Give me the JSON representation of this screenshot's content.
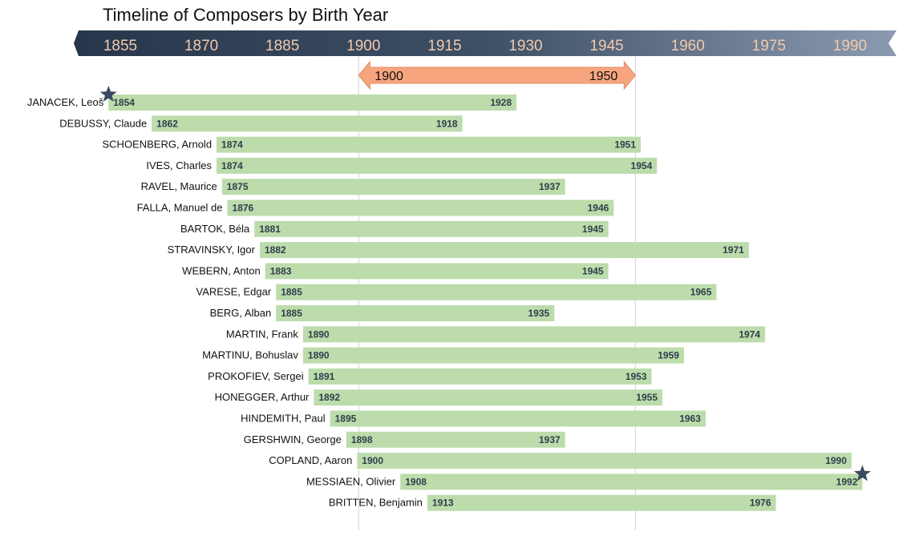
{
  "chart_data": {
    "type": "bar",
    "orientation": "horizontal-range",
    "title": "Timeline of Composers by Birth Year",
    "x_ticks": [
      1855,
      1870,
      1885,
      1900,
      1915,
      1930,
      1945,
      1960,
      1975,
      1990
    ],
    "xlim": [
      1850,
      1995
    ],
    "highlight_range": {
      "start": 1900,
      "end": 1950,
      "labels": [
        "1900",
        "1950"
      ]
    },
    "bar_color": "#bcdcab",
    "axis_band_colors": [
      "#27364a",
      "#8b9ab0"
    ],
    "marker": "star-icon",
    "composers": [
      {
        "name": "JANACEK, Leoš",
        "birth": 1854,
        "death": 1928,
        "star": true
      },
      {
        "name": "DEBUSSY, Claude",
        "birth": 1862,
        "death": 1918
      },
      {
        "name": "SCHOENBERG, Arnold",
        "birth": 1874,
        "death": 1951
      },
      {
        "name": "IVES, Charles",
        "birth": 1874,
        "death": 1954
      },
      {
        "name": "RAVEL, Maurice",
        "birth": 1875,
        "death": 1937
      },
      {
        "name": "FALLA, Manuel de",
        "birth": 1876,
        "death": 1946
      },
      {
        "name": "BARTOK, Béla",
        "birth": 1881,
        "death": 1945
      },
      {
        "name": "STRAVINSKY, Igor",
        "birth": 1882,
        "death": 1971
      },
      {
        "name": "WEBERN, Anton",
        "birth": 1883,
        "death": 1945
      },
      {
        "name": "VARESE, Edgar",
        "birth": 1885,
        "death": 1965
      },
      {
        "name": "BERG, Alban",
        "birth": 1885,
        "death": 1935
      },
      {
        "name": "MARTIN, Frank",
        "birth": 1890,
        "death": 1974
      },
      {
        "name": "MARTINU, Bohuslav",
        "birth": 1890,
        "death": 1959
      },
      {
        "name": "PROKOFIEV, Sergei",
        "birth": 1891,
        "death": 1953
      },
      {
        "name": "HONEGGER, Arthur",
        "birth": 1892,
        "death": 1955
      },
      {
        "name": "HINDEMITH, Paul",
        "birth": 1895,
        "death": 1963
      },
      {
        "name": "GERSHWIN, George",
        "birth": 1898,
        "death": 1937
      },
      {
        "name": "COPLAND, Aaron",
        "birth": 1900,
        "death": 1990
      },
      {
        "name": "MESSIAEN, Olivier",
        "birth": 1908,
        "death": 1992,
        "star": true
      },
      {
        "name": "BRITTEN, Benjamin",
        "birth": 1913,
        "death": 1976
      }
    ]
  }
}
